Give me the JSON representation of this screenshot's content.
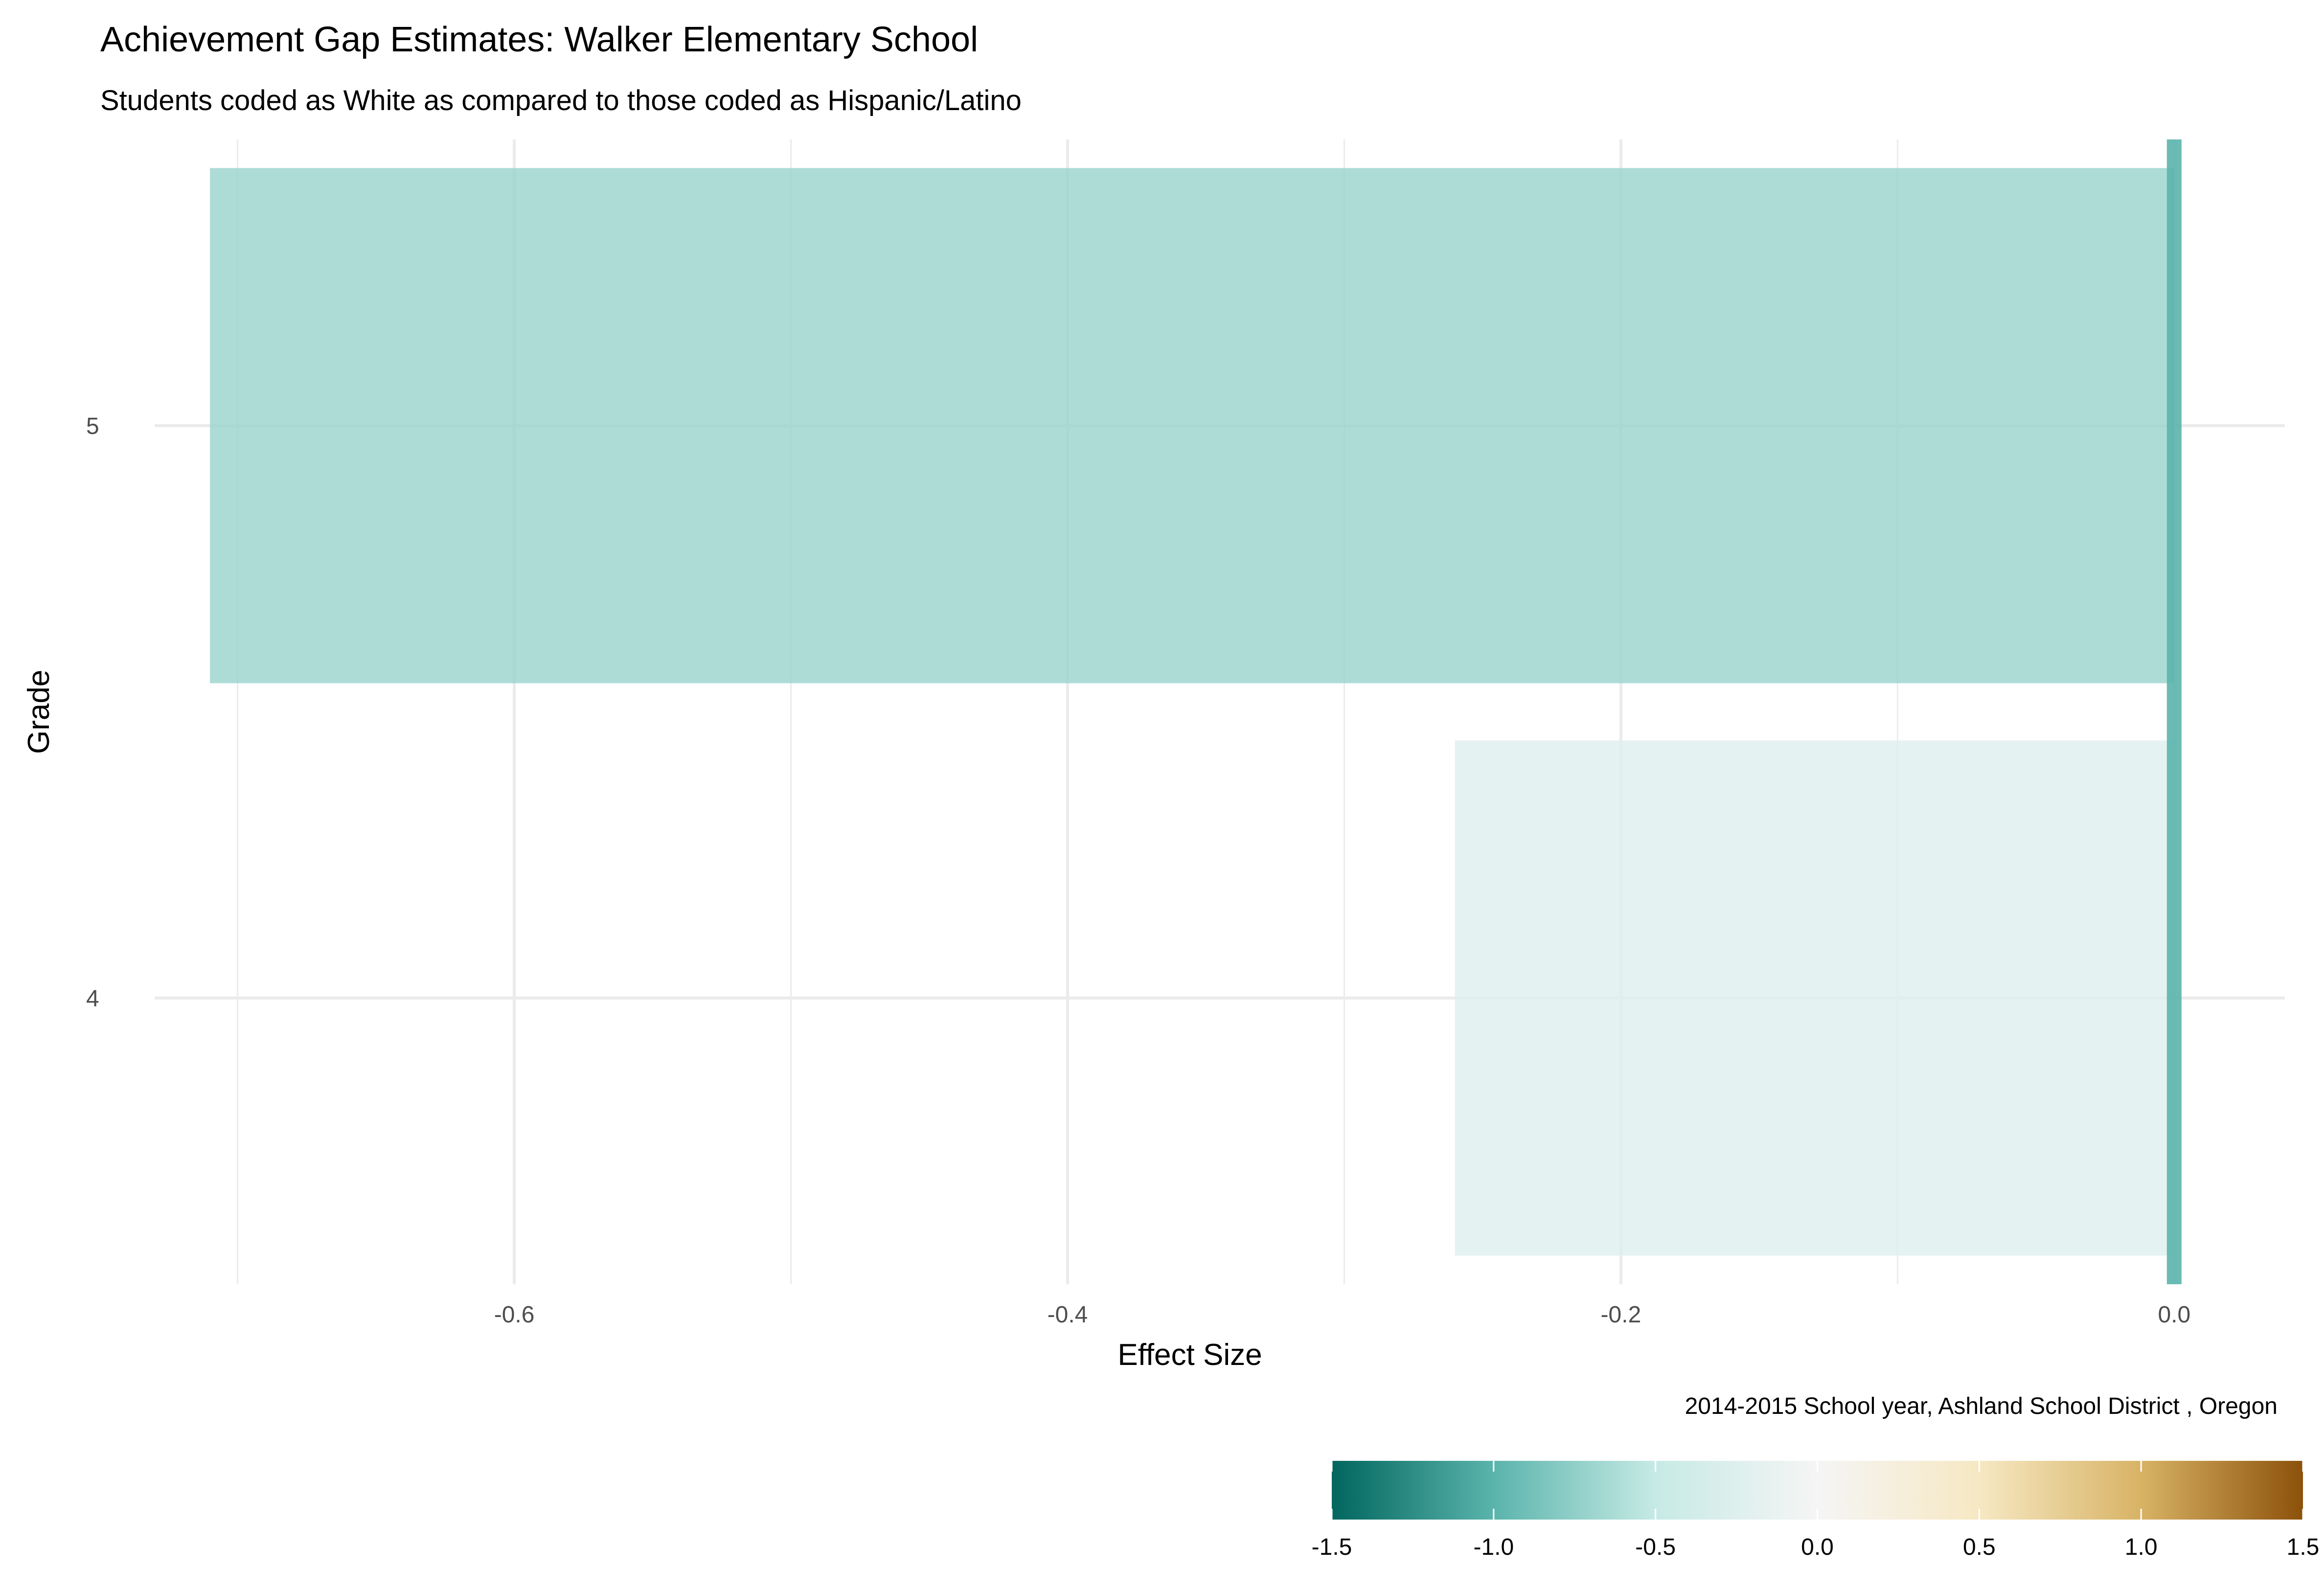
{
  "chart_data": {
    "type": "bar",
    "orientation": "horizontal",
    "title": "Achievement Gap Estimates: Walker Elementary School",
    "subtitle": "Students coded as White as compared to those coded as Hispanic/Latino",
    "xlabel": "Effect Size",
    "ylabel": "Grade",
    "caption": "2014-2015 School year,  Ashland School District , Oregon",
    "categories": [
      "4",
      "5"
    ],
    "values": [
      -0.26,
      -0.71
    ],
    "xlim": [
      -0.73,
      0.04
    ],
    "x_ticks": [
      -0.6,
      -0.4,
      -0.2,
      0.0
    ],
    "x_tick_labels": [
      "-0.6",
      "-0.4",
      "-0.2",
      "0.0"
    ],
    "reference_line": 0.0,
    "grid": true,
    "legend": {
      "type": "colorbar",
      "position": "bottom-right",
      "range": [
        -1.5,
        1.5
      ],
      "ticks": [
        -1.5,
        -1.0,
        -0.5,
        0.0,
        0.5,
        1.0,
        1.5
      ],
      "tick_labels": [
        "-1.5",
        "-1.0",
        "-0.5",
        "0.0",
        "0.5",
        "1.0",
        "1.5"
      ],
      "palette": [
        "#01665e",
        "#5ab4ac",
        "#c7eae5",
        "#f5f5f5",
        "#f6e8c3",
        "#d8b365",
        "#8c510a"
      ]
    },
    "colors": {
      "grid": "#ebebeb",
      "reference_line": "#5ab4ac"
    }
  }
}
